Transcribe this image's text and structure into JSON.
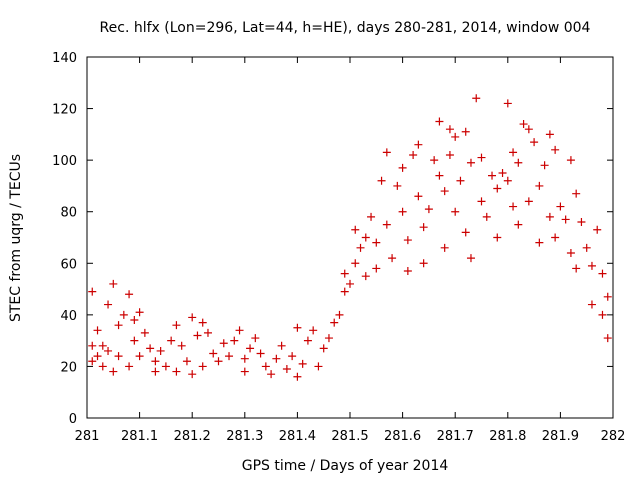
{
  "chart_data": {
    "type": "scatter",
    "title": "Rec. hlfx (Lon=296, Lat=44, h=HE), days 280-281, 2014, window 004",
    "xlabel": "GPS time / Days of year 2014",
    "ylabel": "STEC from uqrg / TECUs",
    "xlim": [
      281,
      282
    ],
    "ylim": [
      0,
      140
    ],
    "x_ticks": [
      "281",
      "281.1",
      "281.2",
      "281.3",
      "281.4",
      "281.5",
      "281.6",
      "281.7",
      "281.8",
      "281.9",
      "282"
    ],
    "y_ticks": [
      "0",
      "20",
      "40",
      "60",
      "80",
      "100",
      "120",
      "140"
    ],
    "grid": false,
    "marker": "plus",
    "color": "#cc0000",
    "series": [
      {
        "points": [
          [
            281.01,
            49
          ],
          [
            281.01,
            28
          ],
          [
            281.01,
            22
          ],
          [
            281.02,
            34
          ],
          [
            281.02,
            24
          ],
          [
            281.03,
            28
          ],
          [
            281.03,
            20
          ],
          [
            281.04,
            44
          ],
          [
            281.04,
            26
          ],
          [
            281.05,
            52
          ],
          [
            281.05,
            18
          ],
          [
            281.06,
            36
          ],
          [
            281.06,
            24
          ],
          [
            281.07,
            40
          ],
          [
            281.08,
            48
          ],
          [
            281.08,
            20
          ],
          [
            281.09,
            38
          ],
          [
            281.09,
            30
          ],
          [
            281.1,
            41
          ],
          [
            281.1,
            24
          ],
          [
            281.11,
            33
          ],
          [
            281.12,
            27
          ],
          [
            281.13,
            22
          ],
          [
            281.13,
            18
          ],
          [
            281.14,
            26
          ],
          [
            281.15,
            20
          ],
          [
            281.16,
            30
          ],
          [
            281.17,
            36
          ],
          [
            281.17,
            18
          ],
          [
            281.18,
            28
          ],
          [
            281.19,
            22
          ],
          [
            281.2,
            39
          ],
          [
            281.2,
            17
          ],
          [
            281.21,
            32
          ],
          [
            281.22,
            37
          ],
          [
            281.22,
            20
          ],
          [
            281.23,
            33
          ],
          [
            281.24,
            25
          ],
          [
            281.25,
            22
          ],
          [
            281.26,
            29
          ],
          [
            281.27,
            24
          ],
          [
            281.28,
            30
          ],
          [
            281.29,
            34
          ],
          [
            281.3,
            23
          ],
          [
            281.3,
            18
          ],
          [
            281.31,
            27
          ],
          [
            281.32,
            31
          ],
          [
            281.33,
            25
          ],
          [
            281.34,
            20
          ],
          [
            281.35,
            17
          ],
          [
            281.36,
            23
          ],
          [
            281.37,
            28
          ],
          [
            281.38,
            19
          ],
          [
            281.39,
            24
          ],
          [
            281.4,
            35
          ],
          [
            281.4,
            16
          ],
          [
            281.41,
            21
          ],
          [
            281.42,
            30
          ],
          [
            281.43,
            34
          ],
          [
            281.44,
            20
          ],
          [
            281.45,
            27
          ],
          [
            281.46,
            31
          ],
          [
            281.47,
            37
          ],
          [
            281.48,
            40
          ],
          [
            281.49,
            49
          ],
          [
            281.49,
            56
          ],
          [
            281.5,
            52
          ],
          [
            281.51,
            73
          ],
          [
            281.51,
            60
          ],
          [
            281.52,
            66
          ],
          [
            281.53,
            70
          ],
          [
            281.53,
            55
          ],
          [
            281.54,
            78
          ],
          [
            281.55,
            68
          ],
          [
            281.55,
            58
          ],
          [
            281.56,
            92
          ],
          [
            281.57,
            103
          ],
          [
            281.57,
            75
          ],
          [
            281.58,
            62
          ],
          [
            281.59,
            90
          ],
          [
            281.6,
            97
          ],
          [
            281.6,
            80
          ],
          [
            281.61,
            69
          ],
          [
            281.61,
            57
          ],
          [
            281.62,
            102
          ],
          [
            281.63,
            106
          ],
          [
            281.63,
            86
          ],
          [
            281.64,
            74
          ],
          [
            281.64,
            60
          ],
          [
            281.65,
            81
          ],
          [
            281.66,
            100
          ],
          [
            281.67,
            115
          ],
          [
            281.67,
            94
          ],
          [
            281.68,
            88
          ],
          [
            281.68,
            66
          ],
          [
            281.69,
            102
          ],
          [
            281.69,
            112
          ],
          [
            281.7,
            109
          ],
          [
            281.7,
            80
          ],
          [
            281.71,
            92
          ],
          [
            281.72,
            111
          ],
          [
            281.72,
            72
          ],
          [
            281.73,
            99
          ],
          [
            281.73,
            62
          ],
          [
            281.74,
            124
          ],
          [
            281.75,
            101
          ],
          [
            281.75,
            84
          ],
          [
            281.76,
            78
          ],
          [
            281.77,
            94
          ],
          [
            281.78,
            89
          ],
          [
            281.78,
            70
          ],
          [
            281.79,
            95
          ],
          [
            281.8,
            92
          ],
          [
            281.8,
            122
          ],
          [
            281.81,
            82
          ],
          [
            281.81,
            103
          ],
          [
            281.82,
            75
          ],
          [
            281.82,
            99
          ],
          [
            281.83,
            114
          ],
          [
            281.84,
            112
          ],
          [
            281.84,
            84
          ],
          [
            281.85,
            107
          ],
          [
            281.86,
            90
          ],
          [
            281.86,
            68
          ],
          [
            281.87,
            98
          ],
          [
            281.88,
            110
          ],
          [
            281.88,
            78
          ],
          [
            281.89,
            104
          ],
          [
            281.89,
            70
          ],
          [
            281.9,
            82
          ],
          [
            281.91,
            77
          ],
          [
            281.92,
            100
          ],
          [
            281.92,
            64
          ],
          [
            281.93,
            87
          ],
          [
            281.93,
            58
          ],
          [
            281.94,
            76
          ],
          [
            281.95,
            66
          ],
          [
            281.96,
            59
          ],
          [
            281.96,
            44
          ],
          [
            281.97,
            73
          ],
          [
            281.98,
            56
          ],
          [
            281.98,
            40
          ],
          [
            281.99,
            47
          ],
          [
            281.99,
            31
          ]
        ]
      }
    ]
  }
}
